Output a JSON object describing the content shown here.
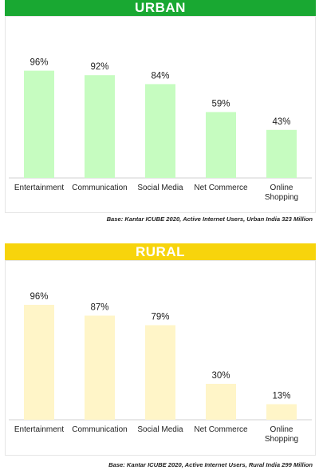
{
  "colors": {
    "urban_banner": "#19a832",
    "rural_banner": "#f7d40c",
    "urban_bar": "#c6fcc0",
    "rural_bar": "#fff5c8",
    "baseline": "#d0d0d0"
  },
  "urban": {
    "title": "URBAN",
    "base_note": "Base: Kantar ICUBE 2020, Active Internet Users, Urban India 323 Million"
  },
  "rural": {
    "title": "RURAL",
    "base_note": "Base: Kantar ICUBE 2020, Active Internet Users, Rural India 299 Million"
  },
  "chart_data": [
    {
      "type": "bar",
      "title": "URBAN",
      "categories": [
        "Entertainment",
        "Communication",
        "Social Media",
        "Net Commerce",
        "Online Shopping"
      ],
      "category_lines": [
        [
          "Entertainment"
        ],
        [
          "Communication"
        ],
        [
          "Social Media"
        ],
        [
          "Net Commerce"
        ],
        [
          "Online",
          "Shopping"
        ]
      ],
      "values": [
        96,
        92,
        84,
        59,
        43
      ],
      "value_labels": [
        "96%",
        "92%",
        "84%",
        "59%",
        "43%"
      ],
      "unit": "%",
      "ylim": [
        0,
        100
      ],
      "grid": false,
      "legend": "none"
    },
    {
      "type": "bar",
      "title": "RURAL",
      "categories": [
        "Entertainment",
        "Communication",
        "Social Media",
        "Net Commerce",
        "Online Shopping"
      ],
      "category_lines": [
        [
          "Entertainment"
        ],
        [
          "Communication"
        ],
        [
          "Social Media"
        ],
        [
          "Net Commerce"
        ],
        [
          "Online",
          "Shopping"
        ]
      ],
      "values": [
        96,
        87,
        79,
        30,
        13
      ],
      "value_labels": [
        "96%",
        "87%",
        "79%",
        "30%",
        "13%"
      ],
      "unit": "%",
      "ylim": [
        0,
        100
      ],
      "grid": false,
      "legend": "none"
    }
  ]
}
